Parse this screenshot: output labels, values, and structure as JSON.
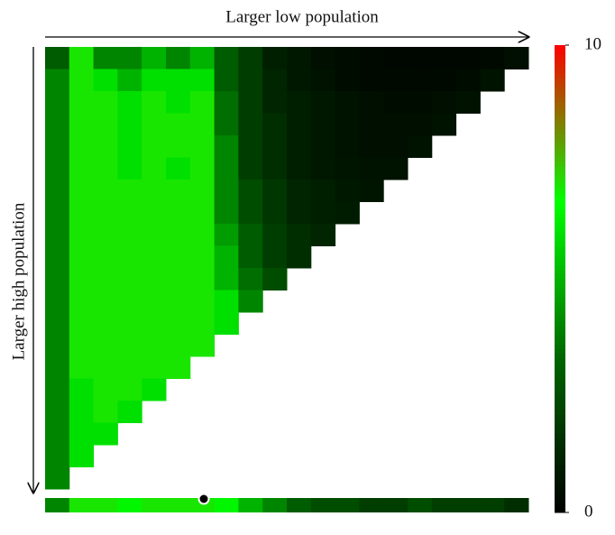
{
  "chart_data": {
    "type": "heatmap",
    "x_label": "Larger low population",
    "y_label": "Larger high population",
    "colormap": [
      "#000000",
      "#006600",
      "#00ff00",
      "#ff0000"
    ],
    "zlim": [
      0,
      10
    ],
    "zticks": [
      10,
      0
    ],
    "z": [
      [
        3,
        7,
        4,
        4,
        5,
        4,
        5,
        3,
        2,
        1,
        0.8,
        0.5,
        0.4,
        0.3,
        0.2,
        0.2,
        0.2,
        0.2,
        0.3,
        0.5
      ],
      [
        4,
        7,
        6,
        5,
        6,
        6,
        6,
        3,
        2,
        1.2,
        0.8,
        0.6,
        0.4,
        0.3,
        0.3,
        0.3,
        0.3,
        0.4,
        0.6
      ],
      [
        4,
        7,
        7,
        6,
        7,
        6,
        7,
        3.5,
        2,
        1.2,
        1,
        0.8,
        0.6,
        0.5,
        0.4,
        0.4,
        0.5,
        0.6
      ],
      [
        4,
        7,
        7,
        6,
        7,
        7,
        7,
        3.5,
        2,
        1.5,
        1,
        0.8,
        0.6,
        0.5,
        0.5,
        0.5,
        0.6
      ],
      [
        4,
        7,
        7,
        6,
        7,
        7,
        7,
        4,
        2,
        1.5,
        1,
        0.8,
        0.6,
        0.5,
        0.5,
        0.6
      ],
      [
        4,
        7,
        7,
        6,
        7,
        6,
        7,
        4,
        2,
        1.5,
        1,
        0.8,
        0.7,
        0.6,
        0.6
      ],
      [
        4,
        7,
        7,
        7,
        7,
        7,
        7,
        4,
        2.5,
        1.8,
        1.2,
        1,
        0.8,
        0.7
      ],
      [
        4,
        7,
        7,
        7,
        7,
        7,
        7,
        4,
        2.5,
        1.8,
        1.2,
        1,
        0.9
      ],
      [
        4,
        7,
        7,
        7,
        7,
        7,
        7,
        4.5,
        3,
        2,
        1.5,
        1.2
      ],
      [
        4,
        7,
        7,
        7,
        7,
        7,
        7,
        5,
        3,
        2,
        1.5
      ],
      [
        4,
        7,
        7,
        7,
        7,
        7,
        7,
        5,
        3.5,
        2.5
      ],
      [
        4,
        7,
        7,
        7,
        7,
        7,
        7,
        6,
        4
      ],
      [
        4,
        7,
        7,
        7,
        7,
        7,
        7,
        6
      ],
      [
        4,
        7,
        7,
        7,
        7,
        7,
        7
      ],
      [
        4,
        7,
        7,
        7,
        7,
        7
      ],
      [
        4,
        6,
        7,
        7,
        6
      ],
      [
        4,
        6,
        7,
        6
      ],
      [
        4,
        6,
        6
      ],
      [
        4,
        6
      ],
      [
        4
      ]
    ],
    "bottom_strip": [
      4,
      7,
      7,
      6.5,
      7,
      7,
      7,
      6.5,
      5,
      4,
      3,
      2.5,
      2.5,
      2,
      2,
      2.5,
      2,
      2,
      2,
      1.5
    ]
  }
}
